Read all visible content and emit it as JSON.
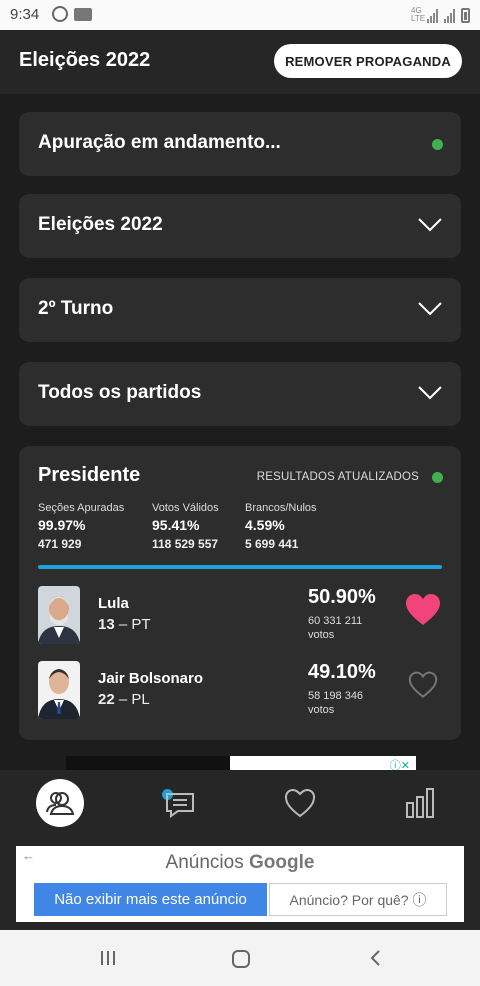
{
  "status_bar": {
    "time": "9:34"
  },
  "app_bar": {
    "title": "Eleições 2022",
    "remove_ads_label": "REMOVER PROPAGANDA"
  },
  "filters": [
    {
      "label": "Apuração em andamento...",
      "indicator": "green-dot"
    },
    {
      "label": "Eleições 2022",
      "indicator": "chevron-down"
    },
    {
      "label": "2º Turno",
      "indicator": "chevron-down"
    },
    {
      "label": "Todos os partidos",
      "indicator": "chevron-down"
    }
  ],
  "president": {
    "title": "Presidente",
    "update_label": "RESULTADOS ATUALIZADOS",
    "stats": [
      {
        "label": "Seções Apuradas",
        "percent": "99.97%",
        "count": "471 929"
      },
      {
        "label": "Votos Válidos",
        "percent": "95.41%",
        "count": "118 529 557"
      },
      {
        "label": "Brancos/Nulos",
        "percent": "4.59%",
        "count": "5 699 441"
      }
    ],
    "progress": 0.9997,
    "candidates": [
      {
        "name": "Lula",
        "number": "13",
        "party": "PT",
        "percent": "50.90%",
        "votes": "60 331 211",
        "votes_label": "votos",
        "favorite": true
      },
      {
        "name": "Jair Bolsonaro",
        "number": "22",
        "party": "PL",
        "percent": "49.10%",
        "votes": "58 198 346",
        "votes_label": "votos",
        "favorite": false
      }
    ]
  },
  "bottom_nav": [
    {
      "icon": "candidates-icon",
      "active": true
    },
    {
      "icon": "chat-icon",
      "active": false,
      "badge": true
    },
    {
      "icon": "heart-icon",
      "active": false
    },
    {
      "icon": "bar-chart-icon",
      "active": false
    }
  ],
  "ad": {
    "brand_prefix": "Anúncios",
    "brand": "Google",
    "hide_label": "Não exibir mais este anúncio",
    "why_label": "Anúncio? Por quê? ⓘ"
  },
  "colors": {
    "accent": "#1fa0d6",
    "heart": "#f0447a",
    "green": "#3fb24f",
    "ad_blue": "#3f86e6"
  }
}
